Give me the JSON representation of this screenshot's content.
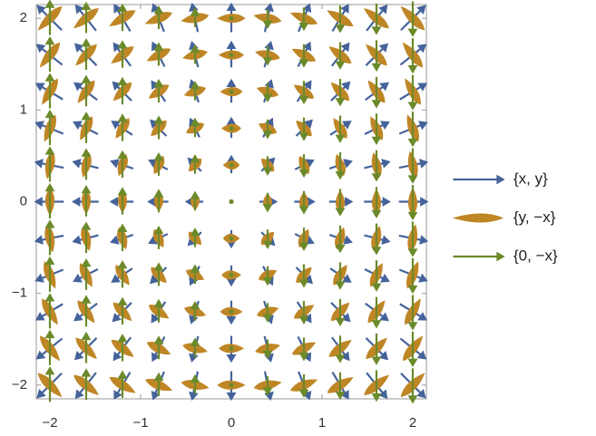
{
  "chart_data": {
    "type": "vector",
    "grid_points": [
      -2,
      -1.6,
      -1.2,
      -0.8,
      -0.4,
      0,
      0.4,
      0.8,
      1.2,
      1.6,
      2
    ],
    "xlim": [
      -2.15,
      2.15
    ],
    "ylim": [
      -2.15,
      2.15
    ],
    "xticks": [
      {
        "value": -2,
        "label": "−2"
      },
      {
        "value": -1,
        "label": "−1"
      },
      0,
      1,
      2
    ],
    "yticks": [
      {
        "value": -2,
        "label": "−2"
      },
      {
        "value": -1,
        "label": "−1"
      },
      0,
      1,
      2
    ],
    "series": [
      {
        "name": "{x, y}",
        "color": "#45639a",
        "style": "arrow",
        "matrix": [
          [
            1,
            0
          ],
          [
            0,
            1
          ]
        ]
      },
      {
        "name": "{y, −x}",
        "color": "#bf8626",
        "style": "blob",
        "matrix": [
          [
            0,
            1
          ],
          [
            -1,
            0
          ]
        ]
      },
      {
        "name": "{0, −x}",
        "color": "#6b8a2a",
        "style": "arrow",
        "matrix": [
          [
            0,
            0
          ],
          [
            -1,
            0
          ]
        ]
      }
    ]
  }
}
